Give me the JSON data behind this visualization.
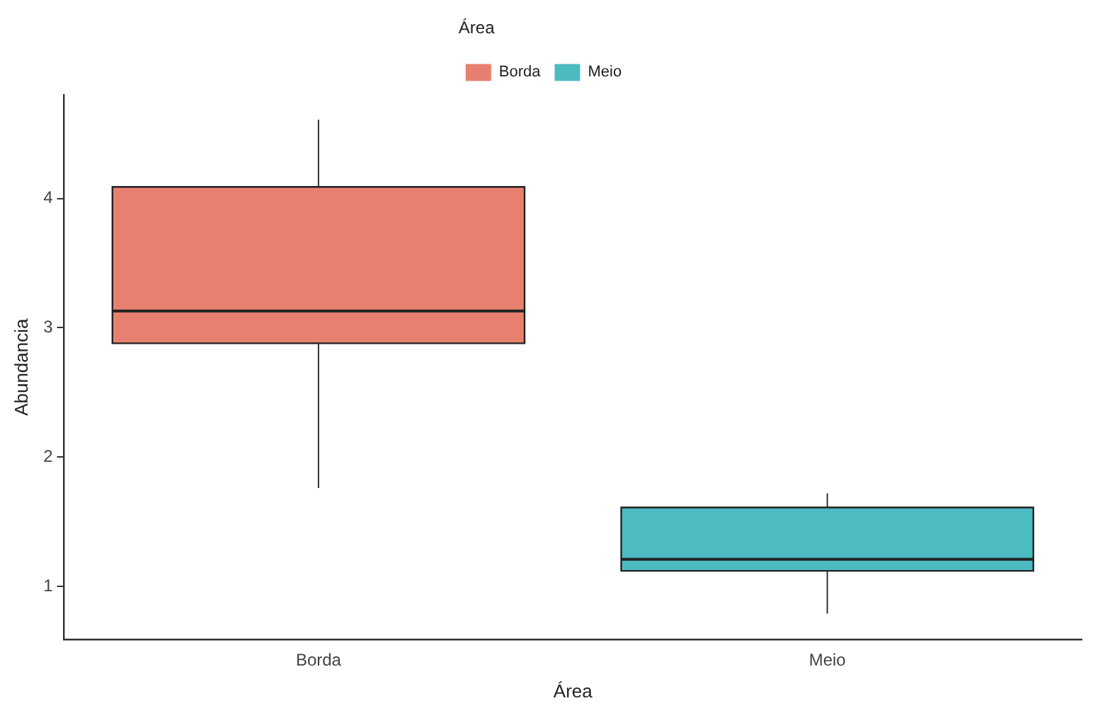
{
  "chart_data": {
    "type": "box",
    "xlabel": "Área",
    "ylabel": "Abundancia",
    "legend_title": "Área",
    "legend": "top",
    "categories": [
      "Borda",
      "Meio"
    ],
    "series": [
      {
        "name": "Borda",
        "color": "#e8806f",
        "boxes": [
          {
            "low": 1.76,
            "q1": 2.88,
            "median": 3.13,
            "q3": 4.09,
            "high": 4.61
          },
          null
        ]
      },
      {
        "name": "Meio",
        "color": "#4cbbc2",
        "boxes": [
          null,
          {
            "low": 0.79,
            "q1": 1.12,
            "median": 1.21,
            "q3": 1.61,
            "high": 1.72
          }
        ]
      }
    ],
    "ylim": [
      0.59,
      4.8
    ],
    "yticks": [
      1,
      2,
      3,
      4
    ],
    "grid": false
  }
}
